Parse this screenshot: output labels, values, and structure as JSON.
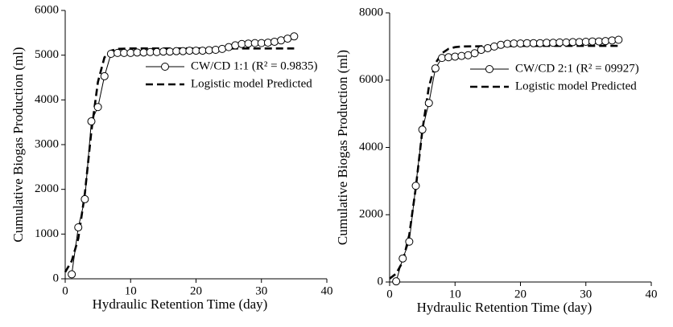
{
  "chart_data": [
    {
      "type": "line",
      "xlabel": "Hydraulic Retention Time (day)",
      "ylabel": "Cumulative Biogas Production (ml)",
      "xlim": [
        0,
        40
      ],
      "xticks": [
        0,
        10,
        20,
        30,
        40
      ],
      "ylim": [
        0,
        6000
      ],
      "yticks": [
        0,
        1000,
        2000,
        3000,
        4000,
        5000,
        6000
      ],
      "legend": "right",
      "series": [
        {
          "name": "CW/CD 1:1 (R² = 0.9835)",
          "color": "#000000",
          "style": "solid-marker",
          "x": [
            1,
            2,
            3,
            4,
            5,
            6,
            7,
            8,
            9,
            10,
            11,
            12,
            13,
            14,
            15,
            16,
            17,
            18,
            19,
            20,
            21,
            22,
            23,
            24,
            25,
            26,
            27,
            28,
            29,
            30,
            31,
            32,
            33,
            34,
            35
          ],
          "values": [
            100,
            1150,
            1780,
            3520,
            3840,
            4530,
            5030,
            5050,
            5050,
            5050,
            5060,
            5060,
            5070,
            5070,
            5080,
            5080,
            5090,
            5090,
            5100,
            5100,
            5100,
            5110,
            5120,
            5140,
            5180,
            5220,
            5250,
            5260,
            5270,
            5270,
            5280,
            5300,
            5330,
            5370,
            5420
          ]
        },
        {
          "name": "Logistic model Predicted",
          "color": "#000000",
          "style": "dashed",
          "x": [
            0,
            1,
            2,
            3,
            4,
            5,
            6,
            7,
            8,
            10,
            15,
            20,
            25,
            30,
            35
          ],
          "values": [
            150,
            400,
            900,
            1900,
            3300,
            4400,
            4950,
            5100,
            5140,
            5150,
            5150,
            5150,
            5150,
            5150,
            5150
          ]
        }
      ]
    },
    {
      "type": "line",
      "xlabel": "Hydraulic Retention Time (day)",
      "ylabel": "Cumulative Biogas Production (ml)",
      "xlim": [
        0,
        40
      ],
      "xticks": [
        0,
        10,
        20,
        30,
        40
      ],
      "ylim": [
        0,
        8000
      ],
      "yticks": [
        0,
        2000,
        4000,
        6000,
        8000
      ],
      "legend": "right",
      "series": [
        {
          "name": "CW/CD 2:1 (R² = 09927)",
          "color": "#000000",
          "style": "solid-marker",
          "x": [
            1,
            2,
            3,
            4,
            5,
            6,
            7,
            8,
            9,
            10,
            11,
            12,
            13,
            14,
            15,
            16,
            17,
            18,
            19,
            20,
            21,
            22,
            23,
            24,
            25,
            26,
            27,
            28,
            29,
            30,
            31,
            32,
            33,
            34,
            35
          ],
          "values": [
            20,
            700,
            1200,
            2860,
            4530,
            5320,
            6350,
            6660,
            6680,
            6700,
            6720,
            6740,
            6800,
            6900,
            6950,
            7000,
            7050,
            7080,
            7090,
            7090,
            7100,
            7100,
            7100,
            7110,
            7110,
            7120,
            7120,
            7130,
            7130,
            7140,
            7150,
            7150,
            7160,
            7180,
            7200
          ]
        },
        {
          "name": "Logistic model Predicted",
          "color": "#000000",
          "style": "dashed",
          "x": [
            0,
            1,
            2,
            3,
            4,
            5,
            6,
            7,
            8,
            9,
            10,
            11,
            15,
            20,
            25,
            30,
            35
          ],
          "values": [
            100,
            250,
            600,
            1400,
            2800,
            4500,
            5800,
            6500,
            6800,
            6930,
            6980,
            7000,
            7010,
            7020,
            7020,
            7020,
            7020
          ]
        }
      ]
    }
  ]
}
